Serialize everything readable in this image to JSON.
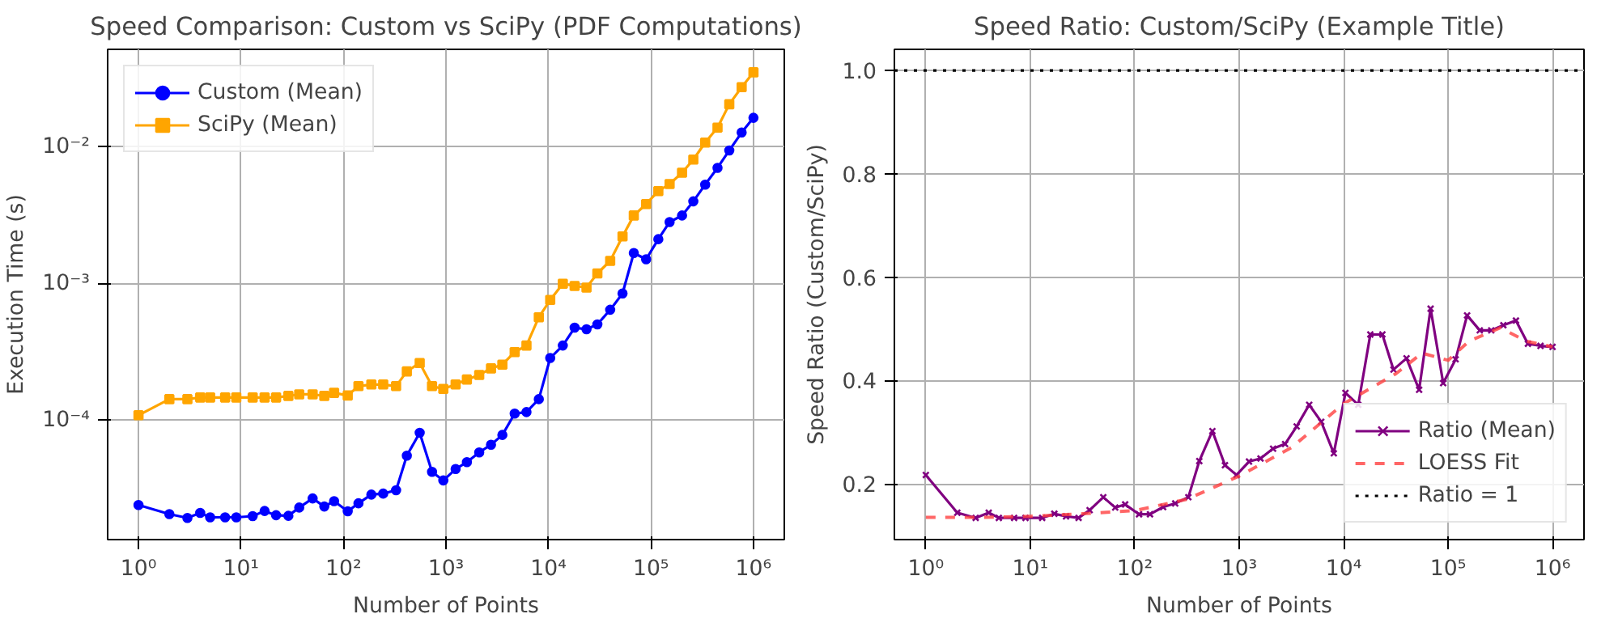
{
  "chart_data": [
    {
      "type": "line",
      "title": "Speed Comparison: Custom vs SciPy (PDF Computations)",
      "xlabel": "Number of Points",
      "ylabel": "Execution Time (s)",
      "log": "xy",
      "grid": true,
      "legend": "top left",
      "line_style": "solid",
      "x": [
        1,
        2,
        3,
        4,
        5,
        7,
        9,
        13,
        17,
        22,
        29,
        37,
        50,
        65,
        81,
        110,
        140,
        187,
        244,
        326,
        415,
        554,
        731,
        942,
        1242,
        1600,
        2110,
        2750,
        3550,
        4680,
        6100,
        8050,
        10400,
        13800,
        18000,
        23500,
        30000,
        40000,
        52800,
        68000,
        89700,
        118000,
        152000,
        201000,
        259000,
        338000,
        446000,
        581000,
        767000,
        1000000
      ],
      "xlim": [
        0.5,
        2000000
      ],
      "ylim": [
        1.34e-05,
        0.052
      ],
      "xticks": [
        {
          "value": 1,
          "label": "10⁰"
        },
        {
          "value": 10,
          "label": "10¹"
        },
        {
          "value": 100,
          "label": "10²"
        },
        {
          "value": 1000,
          "label": "10³"
        },
        {
          "value": 10000,
          "label": "10⁴"
        },
        {
          "value": 100000,
          "label": "10⁵"
        },
        {
          "value": 1000000,
          "label": "10⁶"
        }
      ],
      "yticks": [
        {
          "value": 0.0001,
          "label": "10⁻⁴"
        },
        {
          "value": 0.001,
          "label": "10⁻³"
        },
        {
          "value": 0.01,
          "label": "10⁻²"
        }
      ],
      "series": [
        {
          "name": "Custom (Mean)",
          "color": "#0000ff",
          "marker": "circle",
          "values": [
            2.4e-05,
            2.06e-05,
            1.93e-05,
            2.1e-05,
            1.95e-05,
            1.95e-05,
            1.95e-05,
            1.99e-05,
            2.17e-05,
            2.02e-05,
            2e-05,
            2.3e-05,
            2.68e-05,
            2.34e-05,
            2.56e-05,
            2.16e-05,
            2.47e-05,
            2.86e-05,
            2.91e-05,
            3.08e-05,
            5.52e-05,
            8.11e-05,
            4.2e-05,
            3.63e-05,
            4.4e-05,
            4.95e-05,
            5.83e-05,
            6.63e-05,
            7.82e-05,
            0.000112,
            0.000115,
            0.000143,
            0.000286,
            0.000353,
            0.000477,
            0.000464,
            0.000504,
            0.000645,
            0.000849,
            0.00168,
            0.00151,
            0.00212,
            0.00283,
            0.00316,
            0.00401,
            0.00532,
            0.00706,
            0.00946,
            0.0128,
            0.0164
          ]
        },
        {
          "name": "SciPy (Mean)",
          "color": "#ffa500",
          "marker": "square",
          "values": [
            0.000109,
            0.000143,
            0.000143,
            0.000147,
            0.000147,
            0.000147,
            0.000147,
            0.000147,
            0.000147,
            0.000147,
            0.000151,
            0.000155,
            0.000155,
            0.000151,
            0.000159,
            0.000152,
            0.000178,
            0.000183,
            0.000183,
            0.000178,
            0.000228,
            0.000263,
            0.000178,
            0.00017,
            0.000183,
            0.000199,
            0.000215,
            0.00024,
            0.000256,
            0.000316,
            0.000353,
            0.000568,
            0.000761,
            0.001,
            0.000964,
            0.000938,
            0.00119,
            0.00147,
            0.00222,
            0.00316,
            0.00383,
            0.00477,
            0.00537,
            0.0065,
            0.00811,
            0.0108,
            0.0139,
            0.0206,
            0.0275,
            0.0353
          ]
        }
      ]
    },
    {
      "type": "line",
      "title": "Speed Ratio: Custom/SciPy (Example Title)",
      "xlabel": "Number of Points",
      "ylabel": "Speed Ratio (Custom/SciPy)",
      "log": "x",
      "grid": true,
      "legend": "bottom right",
      "line_style": "solid",
      "x": [
        1,
        2,
        3,
        4,
        5,
        7,
        9,
        13,
        17,
        22,
        29,
        37,
        50,
        65,
        81,
        110,
        140,
        187,
        244,
        326,
        415,
        554,
        731,
        942,
        1242,
        1600,
        2110,
        2750,
        3550,
        4680,
        6100,
        8050,
        10400,
        13800,
        18000,
        23500,
        30000,
        40000,
        52800,
        68000,
        89700,
        118000,
        152000,
        201000,
        259000,
        338000,
        446000,
        581000,
        767000,
        1000000
      ],
      "xlim": [
        0.5,
        2000000
      ],
      "ylim": [
        0.092,
        1.041
      ],
      "xticks": [
        {
          "value": 1,
          "label": "10⁰"
        },
        {
          "value": 10,
          "label": "10¹"
        },
        {
          "value": 100,
          "label": "10²"
        },
        {
          "value": 1000,
          "label": "10³"
        },
        {
          "value": 10000,
          "label": "10⁴"
        },
        {
          "value": 100000,
          "label": "10⁵"
        },
        {
          "value": 1000000,
          "label": "10⁶"
        }
      ],
      "yticks": [
        {
          "value": 0.2,
          "label": "0.2"
        },
        {
          "value": 0.4,
          "label": "0.4"
        },
        {
          "value": 0.6,
          "label": "0.6"
        },
        {
          "value": 0.8,
          "label": "0.8"
        },
        {
          "value": 1.0,
          "label": "1.0"
        }
      ],
      "series": [
        {
          "name": "Ratio (Mean)",
          "color": "#800080",
          "marker": "cross",
          "values": [
            0.217,
            0.144,
            0.134,
            0.144,
            0.134,
            0.134,
            0.134,
            0.134,
            0.142,
            0.137,
            0.134,
            0.149,
            0.174,
            0.154,
            0.16,
            0.141,
            0.141,
            0.155,
            0.162,
            0.174,
            0.244,
            0.302,
            0.236,
            0.217,
            0.243,
            0.249,
            0.268,
            0.277,
            0.311,
            0.353,
            0.32,
            0.259,
            0.376,
            0.353,
            0.489,
            0.489,
            0.421,
            0.443,
            0.382,
            0.539,
            0.395,
            0.441,
            0.526,
            0.497,
            0.497,
            0.507,
            0.516,
            0.471,
            0.467,
            0.465
          ]
        },
        {
          "name": "LOESS Fit",
          "color": "#ff4040",
          "marker": "none",
          "line_style": "dashed",
          "x": [
            1,
            3.16,
            10,
            31.6,
            100,
            316,
            1000,
            3162,
            10000,
            31623,
            56234,
            100000,
            158489,
            316228,
            562341,
            1000000
          ],
          "values": [
            0.135,
            0.135,
            0.137,
            0.142,
            0.148,
            0.17,
            0.215,
            0.27,
            0.355,
            0.413,
            0.453,
            0.439,
            0.476,
            0.502,
            0.476,
            0.465
          ]
        }
      ],
      "ref_lines": [
        {
          "axis": "y",
          "value": 1.0,
          "label": "Ratio = 1",
          "color": "#000000",
          "line_style": "dotted"
        }
      ]
    }
  ]
}
